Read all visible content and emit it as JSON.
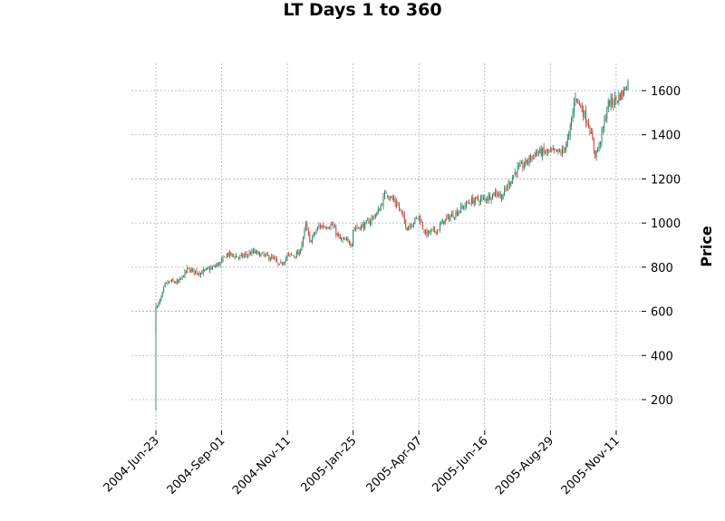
{
  "chart_data": {
    "type": "candlestick",
    "title": "LT Days 1 to 360",
    "xlabel": "",
    "ylabel": "Price",
    "ylim": [
      90,
      1720
    ],
    "yticks": [
      200,
      400,
      600,
      800,
      1000,
      1200,
      1400,
      1600
    ],
    "xtick_labels": [
      "2004-Jun-23",
      "2004-Sep-01",
      "2004-Nov-11",
      "2005-Jan-25",
      "2005-Apr-07",
      "2005-Jun-16",
      "2005-Aug-29",
      "2005-Nov-11"
    ],
    "xtick_days": [
      1,
      51,
      101,
      151,
      201,
      251,
      301,
      351
    ],
    "n_days": 360,
    "grid": true,
    "colors": {
      "up": "#1f7a5a",
      "down": "#c0392b",
      "grid": "#b0b0b0"
    },
    "close_path": [
      [
        1,
        500
      ],
      [
        2,
        620
      ],
      [
        5,
        660
      ],
      [
        8,
        720
      ],
      [
        12,
        735
      ],
      [
        18,
        730
      ],
      [
        25,
        790
      ],
      [
        35,
        775
      ],
      [
        45,
        800
      ],
      [
        51,
        825
      ],
      [
        55,
        860
      ],
      [
        65,
        845
      ],
      [
        75,
        868
      ],
      [
        90,
        840
      ],
      [
        95,
        805
      ],
      [
        101,
        850
      ],
      [
        110,
        860
      ],
      [
        115,
        990
      ],
      [
        118,
        915
      ],
      [
        125,
        985
      ],
      [
        135,
        990
      ],
      [
        141,
        925
      ],
      [
        150,
        910
      ],
      [
        151,
        975
      ],
      [
        160,
        990
      ],
      [
        170,
        1050
      ],
      [
        176,
        1140
      ],
      [
        185,
        1080
      ],
      [
        192,
        980
      ],
      [
        201,
        1030
      ],
      [
        206,
        950
      ],
      [
        215,
        970
      ],
      [
        220,
        1010
      ],
      [
        230,
        1050
      ],
      [
        240,
        1100
      ],
      [
        251,
        1110
      ],
      [
        260,
        1140
      ],
      [
        264,
        1120
      ],
      [
        275,
        1240
      ],
      [
        280,
        1260
      ],
      [
        290,
        1320
      ],
      [
        301,
        1320
      ],
      [
        310,
        1320
      ],
      [
        315,
        1390
      ],
      [
        320,
        1580
      ],
      [
        330,
        1450
      ],
      [
        335,
        1310
      ],
      [
        338,
        1350
      ],
      [
        345,
        1540
      ],
      [
        351,
        1560
      ],
      [
        356,
        1590
      ],
      [
        360,
        1640
      ]
    ]
  }
}
